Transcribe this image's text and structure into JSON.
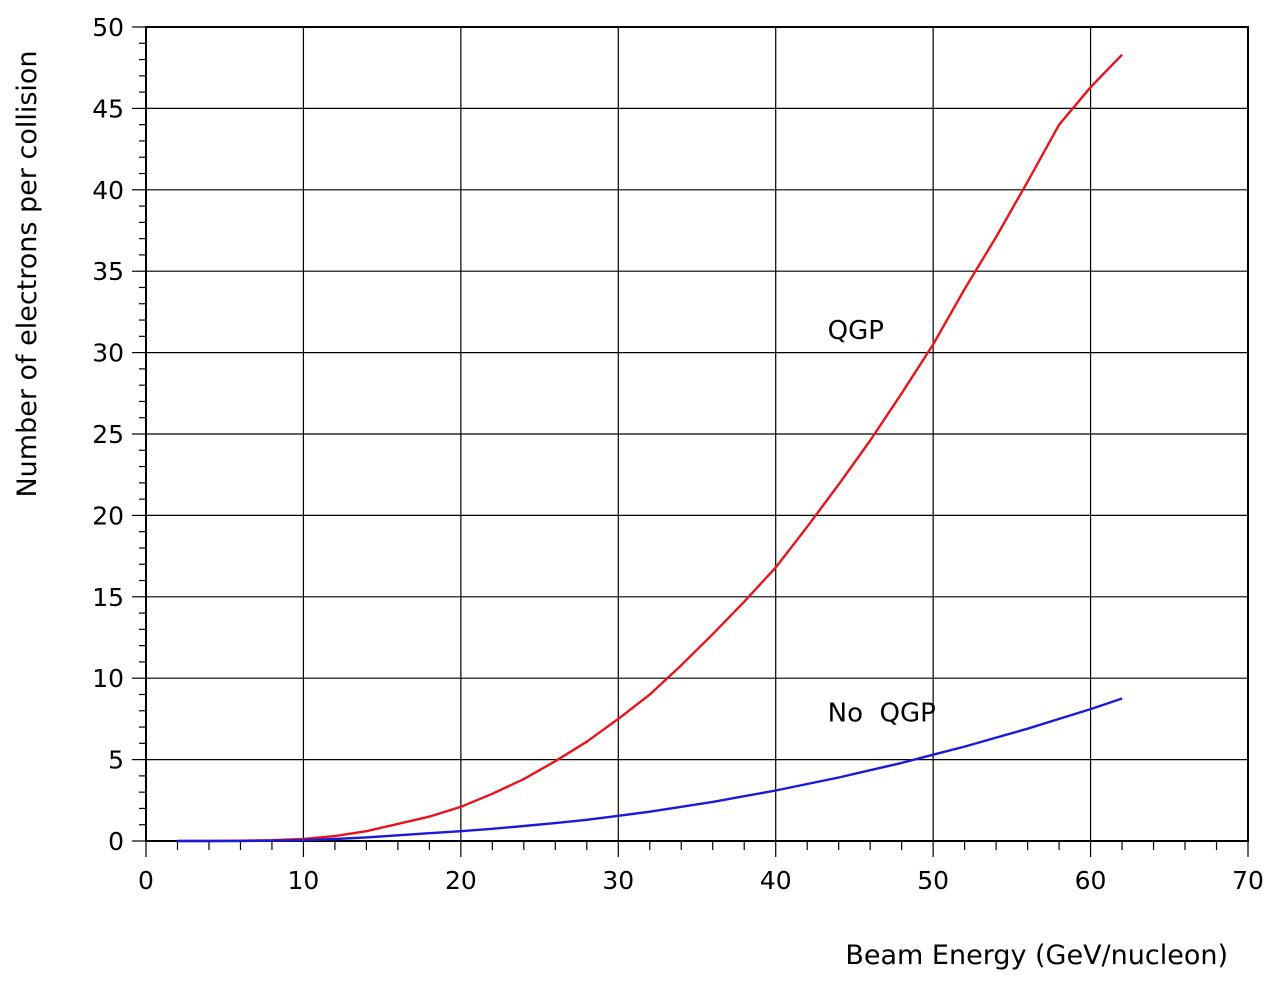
{
  "chart_data": {
    "type": "line",
    "title": "",
    "xlabel": "Beam Energy (GeV/nucleon)",
    "ylabel": "Number of electrons per collision",
    "xlim": [
      0,
      70
    ],
    "ylim": [
      0,
      50
    ],
    "x_ticks": [
      0,
      10,
      20,
      30,
      40,
      50,
      60,
      70
    ],
    "y_ticks": [
      0,
      5,
      10,
      15,
      20,
      25,
      30,
      35,
      40,
      45,
      50
    ],
    "grid": true,
    "legend": "none",
    "series": [
      {
        "label": "QGP",
        "color": "#e8141c",
        "x": [
          2,
          4,
          6,
          8,
          10,
          12,
          14,
          16,
          18,
          20,
          22,
          24,
          26,
          28,
          30,
          32,
          34,
          36,
          38,
          40,
          42,
          44,
          46,
          48,
          50,
          52,
          54,
          56,
          58,
          60,
          62
        ],
        "y": [
          0.0,
          0.0,
          0.02,
          0.05,
          0.12,
          0.3,
          0.6,
          1.05,
          1.5,
          2.1,
          2.9,
          3.8,
          4.9,
          6.1,
          7.5,
          9.0,
          10.8,
          12.7,
          14.7,
          16.8,
          19.3,
          21.9,
          24.6,
          27.5,
          30.5,
          33.9,
          37.1,
          40.5,
          44.0,
          46.3,
          48.3
        ]
      },
      {
        "label": "No QGP",
        "color": "#1a1ad6",
        "x": [
          2,
          4,
          6,
          8,
          10,
          12,
          14,
          16,
          18,
          20,
          22,
          24,
          26,
          28,
          30,
          32,
          34,
          36,
          38,
          40,
          42,
          44,
          46,
          48,
          50,
          52,
          54,
          56,
          58,
          60,
          62
        ],
        "y": [
          0.0,
          0.0,
          0.0,
          0.02,
          0.05,
          0.12,
          0.22,
          0.35,
          0.48,
          0.6,
          0.75,
          0.92,
          1.1,
          1.3,
          1.55,
          1.8,
          2.1,
          2.4,
          2.75,
          3.1,
          3.5,
          3.9,
          4.35,
          4.8,
          5.3,
          5.8,
          6.35,
          6.9,
          7.5,
          8.1,
          8.75
        ]
      }
    ],
    "annotations": [
      {
        "text": "QGP",
        "x": 43.3,
        "y": 31.4,
        "series": "QGP"
      },
      {
        "text": "No  QGP",
        "x": 43.3,
        "y": 7.9,
        "series": "No QGP"
      }
    ]
  }
}
